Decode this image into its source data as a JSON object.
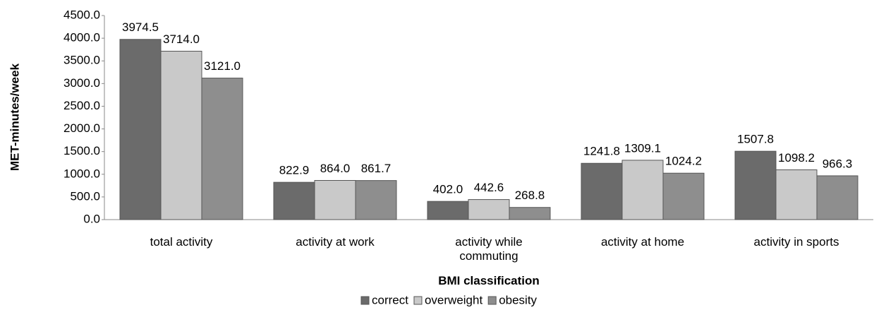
{
  "chart_data": {
    "type": "bar",
    "x_label": "BMI classification",
    "y_label": "MET-minutes/week",
    "categories": [
      "total activity",
      "activity at work",
      "activity while commuting",
      "activity at home",
      "activity in sports"
    ],
    "series": [
      {
        "name": "correct",
        "color": "#6b6b6b",
        "values": [
          3974.5,
          822.9,
          402.0,
          1241.8,
          1507.8
        ],
        "value_labels": [
          "3974.5",
          "822.9",
          "402.0",
          "1241.8",
          "1507.8"
        ]
      },
      {
        "name": "overweight",
        "color": "#c9c9c9",
        "values": [
          3714.0,
          864.0,
          442.6,
          1309.1,
          1098.2
        ],
        "value_labels": [
          "3714.0",
          "864.0",
          "442.6",
          "1309.1",
          "1098.2"
        ]
      },
      {
        "name": "obesity",
        "color": "#8e8e8e",
        "values": [
          3121.0,
          861.7,
          268.8,
          1024.2,
          966.3
        ],
        "value_labels": [
          "3121.0",
          "861.7",
          "268.8",
          "1024.2",
          "966.3"
        ]
      }
    ],
    "ylim": [
      0,
      4500
    ],
    "yticks": [
      {
        "value": 0,
        "label": "0.0"
      },
      {
        "value": 500,
        "label": "500.0"
      },
      {
        "value": 1000,
        "label": "1000.0"
      },
      {
        "value": 1500,
        "label": "1500.0"
      },
      {
        "value": 2000,
        "label": "2000.0"
      },
      {
        "value": 2500,
        "label": "2500.0"
      },
      {
        "value": 3000,
        "label": "3000.0"
      },
      {
        "value": 3500,
        "label": "3500.0"
      },
      {
        "value": 4000,
        "label": "4000.0"
      },
      {
        "value": 4500,
        "label": "4500.0"
      }
    ],
    "grid": false,
    "legend": "bottom"
  }
}
